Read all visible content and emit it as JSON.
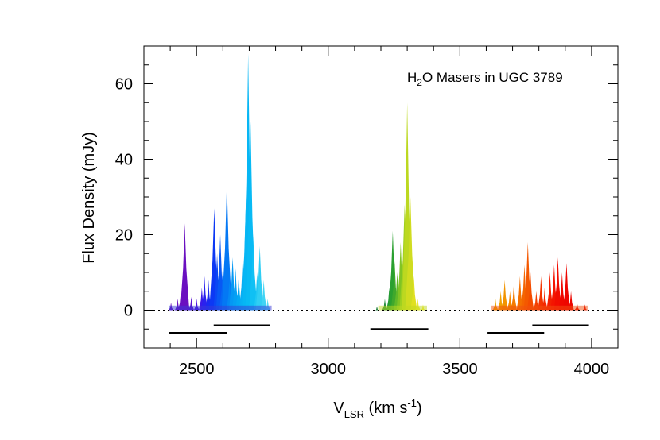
{
  "chart_data": {
    "type": "area",
    "title": "",
    "annotation": {
      "main": "H",
      "sub": "2",
      "rest": "O Masers in UGC 3789"
    },
    "xlabel": {
      "main": "V",
      "sub": "LSR",
      "rest": " (km s",
      "sup": "-1",
      "end": ")"
    },
    "ylabel": "Flux Density (mJy)",
    "xlim": [
      2300,
      4100
    ],
    "ylim": [
      -10,
      70
    ],
    "x_ticks": [
      2500,
      3000,
      3500,
      4000
    ],
    "y_ticks": [
      0,
      20,
      40,
      60
    ],
    "x_tick_labels": [
      "2500",
      "3000",
      "3500",
      "4000"
    ],
    "y_tick_labels": [
      "0",
      "20",
      "40",
      "60"
    ],
    "zero_line": "dotted",
    "peaks": [
      {
        "x": 2403,
        "y": 2.0,
        "color": "#6a10c0"
      },
      {
        "x": 2428,
        "y": 3.0,
        "color": "#6a10c0"
      },
      {
        "x": 2440,
        "y": 4.5,
        "color": "#6a10c0"
      },
      {
        "x": 2455,
        "y": 23.0,
        "color": "#6a10c0"
      },
      {
        "x": 2463,
        "y": 6.0,
        "color": "#6a10c0"
      },
      {
        "x": 2480,
        "y": 3.5,
        "color": "#5a12d0"
      },
      {
        "x": 2500,
        "y": 3.0,
        "color": "#4a14e0"
      },
      {
        "x": 2520,
        "y": 6.0,
        "color": "#3a1ae8"
      },
      {
        "x": 2530,
        "y": 9.0,
        "color": "#2a22ee"
      },
      {
        "x": 2545,
        "y": 8.0,
        "color": "#1a2af0"
      },
      {
        "x": 2560,
        "y": 10.0,
        "color": "#1030f2"
      },
      {
        "x": 2567,
        "y": 27.0,
        "color": "#0c38f4"
      },
      {
        "x": 2578,
        "y": 15.0,
        "color": "#0a48f4"
      },
      {
        "x": 2590,
        "y": 20.0,
        "color": "#0858f4"
      },
      {
        "x": 2600,
        "y": 12.0,
        "color": "#0668f4"
      },
      {
        "x": 2615,
        "y": 33.5,
        "color": "#0478f4"
      },
      {
        "x": 2625,
        "y": 8.0,
        "color": "#0488f4"
      },
      {
        "x": 2637,
        "y": 14.0,
        "color": "#0498f4"
      },
      {
        "x": 2648,
        "y": 11.0,
        "color": "#04a0f4"
      },
      {
        "x": 2660,
        "y": 9.0,
        "color": "#04a8f4"
      },
      {
        "x": 2675,
        "y": 13.0,
        "color": "#06aef4"
      },
      {
        "x": 2688,
        "y": 30.0,
        "color": "#06b2f4"
      },
      {
        "x": 2696,
        "y": 68.0,
        "color": "#06b6f4"
      },
      {
        "x": 2705,
        "y": 50.0,
        "color": "#08baf4"
      },
      {
        "x": 2715,
        "y": 20.0,
        "color": "#10c0f4"
      },
      {
        "x": 2730,
        "y": 10.0,
        "color": "#20c8f4"
      },
      {
        "x": 2740,
        "y": 17.0,
        "color": "#30ceF4"
      },
      {
        "x": 2755,
        "y": 8.0,
        "color": "#40d4f4"
      },
      {
        "x": 2770,
        "y": 3.0,
        "color": "#50dcf4"
      },
      {
        "x": 3185,
        "y": 1.0,
        "color": "#208040"
      },
      {
        "x": 3215,
        "y": 3.0,
        "color": "#208a3a"
      },
      {
        "x": 3232,
        "y": 6.0,
        "color": "#229a34"
      },
      {
        "x": 3245,
        "y": 21.0,
        "color": "#2aa030"
      },
      {
        "x": 3252,
        "y": 13.0,
        "color": "#40a82c"
      },
      {
        "x": 3262,
        "y": 10.0,
        "color": "#60b828"
      },
      {
        "x": 3275,
        "y": 18.0,
        "color": "#80c424"
      },
      {
        "x": 3290,
        "y": 28.0,
        "color": "#a0d020"
      },
      {
        "x": 3300,
        "y": 55.0,
        "color": "#bcd820"
      },
      {
        "x": 3312,
        "y": 30.0,
        "color": "#d0dc20"
      },
      {
        "x": 3325,
        "y": 9.0,
        "color": "#e0e020"
      },
      {
        "x": 3340,
        "y": 3.0,
        "color": "#eeea30"
      },
      {
        "x": 3360,
        "y": 1.5,
        "color": "#f4ee40"
      },
      {
        "x": 3635,
        "y": 3.0,
        "color": "#f0a800"
      },
      {
        "x": 3655,
        "y": 5.0,
        "color": "#f0a000"
      },
      {
        "x": 3670,
        "y": 8.0,
        "color": "#f29400"
      },
      {
        "x": 3690,
        "y": 5.0,
        "color": "#f48800"
      },
      {
        "x": 3705,
        "y": 7.0,
        "color": "#f47c00"
      },
      {
        "x": 3728,
        "y": 9.0,
        "color": "#f47000"
      },
      {
        "x": 3745,
        "y": 12.0,
        "color": "#f46400"
      },
      {
        "x": 3758,
        "y": 18.0,
        "color": "#f45800"
      },
      {
        "x": 3768,
        "y": 10.0,
        "color": "#f44c00"
      },
      {
        "x": 3790,
        "y": 5.0,
        "color": "#f44000"
      },
      {
        "x": 3808,
        "y": 9.0,
        "color": "#f43400"
      },
      {
        "x": 3822,
        "y": 6.0,
        "color": "#f42800"
      },
      {
        "x": 3842,
        "y": 10.0,
        "color": "#f41e00"
      },
      {
        "x": 3858,
        "y": 12.0,
        "color": "#f41400"
      },
      {
        "x": 3872,
        "y": 14.0,
        "color": "#f20c00"
      },
      {
        "x": 3888,
        "y": 10.0,
        "color": "#f00800"
      },
      {
        "x": 3905,
        "y": 12.5,
        "color": "#ee0600"
      },
      {
        "x": 3922,
        "y": 5.0,
        "color": "#ec0600"
      },
      {
        "x": 3945,
        "y": 2.0,
        "color": "#ea0600"
      },
      {
        "x": 3975,
        "y": 1.5,
        "color": "#e80600"
      }
    ],
    "bandwidth_bars": [
      {
        "x_start": 2395,
        "x_end": 2615,
        "y": -6
      },
      {
        "x_start": 2565,
        "x_end": 2780,
        "y": -4
      },
      {
        "x_start": 3160,
        "x_end": 3380,
        "y": -5
      },
      {
        "x_start": 3605,
        "x_end": 3820,
        "y": -6
      },
      {
        "x_start": 3775,
        "x_end": 3990,
        "y": -4
      }
    ]
  }
}
